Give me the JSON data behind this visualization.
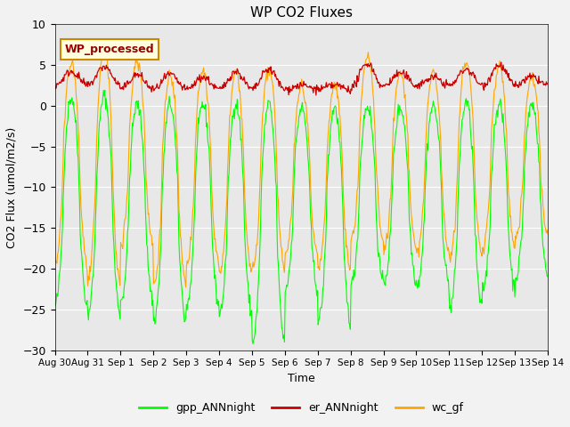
{
  "title": "WP CO2 Fluxes",
  "xlabel": "Time",
  "ylabel": "CO2 Flux (umol/m2/s)",
  "ylim": [
    -30,
    10
  ],
  "yticks": [
    10,
    5,
    0,
    -5,
    -10,
    -15,
    -20,
    -25,
    -30
  ],
  "n_days": 15,
  "points_per_day": 48,
  "gpp_color": "#00FF00",
  "er_color": "#CC0000",
  "wc_color": "#FFA500",
  "plot_bg_color": "#E8E8E8",
  "fig_bg_color": "#F2F2F2",
  "annotation_text": "WP_processed",
  "annotation_facecolor": "#FFFFE0",
  "annotation_edgecolor": "#CC8800",
  "annotation_textcolor": "#990000",
  "legend_labels": [
    "gpp_ANNnight",
    "er_ANNnight",
    "wc_gf"
  ],
  "fig_width": 6.4,
  "fig_height": 4.8,
  "dpi": 100,
  "xtick_labels": [
    "Aug 30",
    "Aug 31",
    "Sep 1",
    "Sep 2",
    "Sep 3",
    "Sep 4",
    "Sep 5",
    "Sep 6",
    "Sep 7",
    "Sep 8",
    "Sep 9",
    "Sep 10",
    "Sep 11",
    "Sep 12",
    "Sep 13",
    "Sep 14"
  ],
  "gpp_day_vals": [
    1.0,
    1.2,
    0.2,
    0.3,
    0.2,
    0.3,
    0.2,
    -0.3,
    -0.2,
    0.0,
    -0.2,
    0.0,
    0.5,
    0.2,
    0.2
  ],
  "gpp_night_vals": [
    -24.5,
    -25.5,
    -24.0,
    -26.5,
    -24.5,
    -25.5,
    -29.0,
    -22.5,
    -26.5,
    -22.0,
    -21.5,
    -22.0,
    -25.0,
    -22.5,
    -21.0
  ],
  "er_day_vals": [
    4.2,
    4.8,
    3.8,
    3.8,
    3.5,
    4.2,
    4.5,
    2.5,
    2.5,
    5.2,
    4.0,
    3.5,
    4.5,
    5.0,
    3.5
  ],
  "er_night_vals": [
    2.5,
    2.5,
    2.0,
    2.0,
    2.0,
    2.0,
    2.0,
    2.0,
    2.0,
    2.2,
    2.5,
    2.5,
    2.5,
    2.5,
    2.5
  ],
  "wc_day_vals": [
    5.2,
    6.8,
    5.5,
    3.8,
    4.2,
    4.0,
    4.5,
    2.5,
    2.5,
    6.0,
    4.0,
    4.0,
    5.5,
    5.0,
    3.5
  ],
  "wc_night_vals": [
    -19.5,
    -21.5,
    -17.0,
    -22.0,
    -19.5,
    -20.5,
    -20.0,
    -18.0,
    -20.0,
    -16.5,
    -17.5,
    -18.0,
    -18.5,
    -17.5,
    -16.0
  ]
}
